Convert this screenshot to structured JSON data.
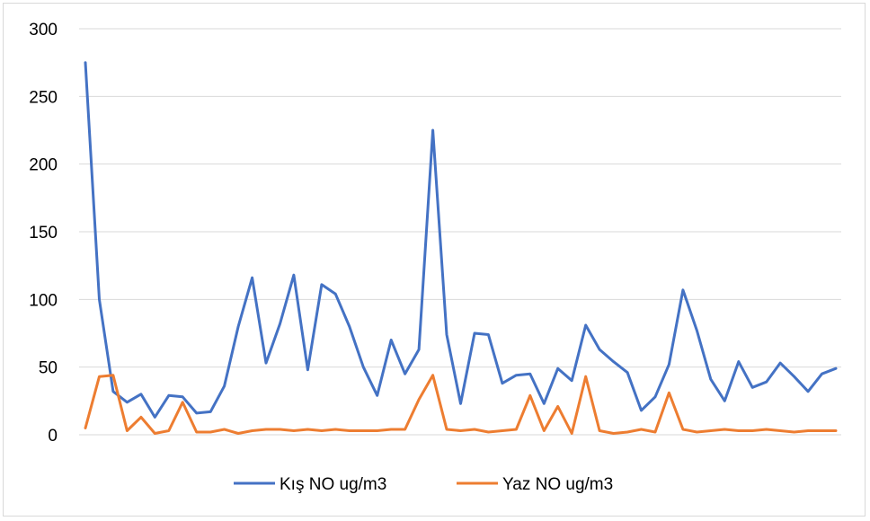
{
  "chart_data": {
    "type": "line",
    "title": "",
    "xlabel": "",
    "ylabel": "",
    "ylim": [
      0,
      300
    ],
    "yticks": [
      0,
      50,
      100,
      150,
      200,
      250,
      300
    ],
    "grid": true,
    "legend_position": "bottom",
    "series": [
      {
        "name": "Kış NO ug/m3",
        "color": "#4472c4",
        "values": [
          275,
          100,
          32,
          24,
          30,
          13,
          29,
          28,
          16,
          17,
          36,
          80,
          116,
          53,
          82,
          118,
          48,
          111,
          104,
          80,
          50,
          29,
          70,
          45,
          63,
          225,
          74,
          23,
          75,
          74,
          38,
          44,
          45,
          23,
          49,
          40,
          81,
          63,
          54,
          46,
          18,
          28,
          52,
          107,
          77,
          41,
          25,
          54,
          35,
          39,
          53,
          43,
          32,
          45,
          49
        ]
      },
      {
        "name": "Yaz NO ug/m3",
        "color": "#ed7d31",
        "values": [
          5,
          43,
          44,
          3,
          13,
          1,
          3,
          24,
          2,
          2,
          4,
          1,
          3,
          4,
          4,
          3,
          4,
          3,
          4,
          3,
          3,
          3,
          4,
          4,
          26,
          44,
          4,
          3,
          4,
          2,
          3,
          4,
          29,
          3,
          21,
          1,
          43,
          3,
          1,
          2,
          4,
          2,
          31,
          4,
          2,
          3,
          4,
          3,
          3,
          4,
          3,
          2,
          3,
          3,
          3
        ]
      }
    ]
  }
}
